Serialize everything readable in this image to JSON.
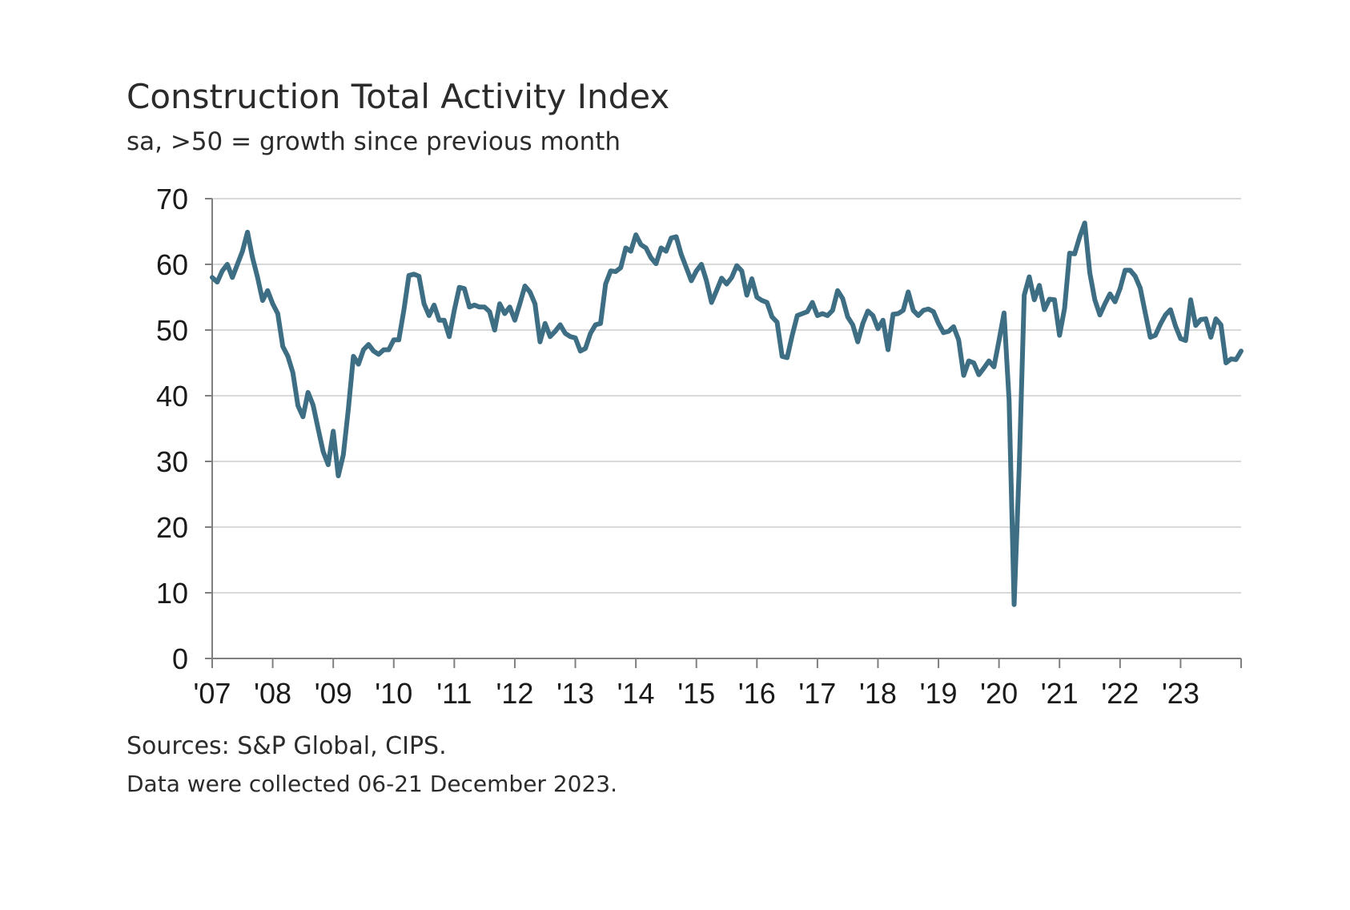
{
  "header": {
    "title": "Construction Total Activity Index",
    "subtitle": "sa, >50 = growth since previous month"
  },
  "footer": {
    "sources": "Sources: S&P Global, CIPS.",
    "collected": "Data were collected 06-21 December 2023."
  },
  "colors": {
    "line": "#3d6e84",
    "grid": "#d9d9d9",
    "axis": "#7f7f7f"
  },
  "chart_data": {
    "type": "line",
    "title": "Construction Total Activity Index",
    "subtitle": "sa, >50 = growth since previous month",
    "xlabel": "",
    "ylabel": "",
    "ylim": [
      0,
      70
    ],
    "yticks": [
      "0",
      "10",
      "20",
      "30",
      "40",
      "50",
      "60",
      "70"
    ],
    "xticks": [
      "'07",
      "'08",
      "'09",
      "'10",
      "'11",
      "'12",
      "'13",
      "'14",
      "'15",
      "'16",
      "'17",
      "'18",
      "'19",
      "'20",
      "'21",
      "'22",
      "'23"
    ],
    "grid": true,
    "legend": "none",
    "series": [
      {
        "start": "2007-01",
        "frequency": "monthly",
        "values": [
          58.0,
          57.3,
          59.0,
          60.0,
          58.0,
          60.0,
          62.0,
          64.9,
          61.0,
          58.0,
          54.5,
          56.0,
          54.0,
          52.5,
          47.5,
          46.0,
          43.5,
          38.5,
          36.8,
          40.5,
          38.6,
          35.0,
          31.5,
          29.5,
          34.6,
          27.8,
          31.0,
          38.0,
          46.0,
          44.8,
          47.0,
          47.8,
          46.8,
          46.3,
          47.0,
          47.0,
          48.5,
          48.5,
          53.0,
          58.3,
          58.5,
          58.2,
          54.0,
          52.2,
          53.8,
          51.5,
          51.5,
          49.0,
          53.0,
          56.5,
          56.3,
          53.5,
          53.8,
          53.5,
          53.5,
          52.8,
          50.0,
          54.0,
          52.5,
          53.5,
          51.5,
          54.0,
          56.7,
          55.8,
          54.0,
          48.2,
          51.0,
          49.0,
          49.8,
          50.8,
          49.5,
          49.0,
          48.8,
          46.8,
          47.2,
          49.5,
          50.8,
          51.0,
          57.0,
          59.0,
          58.9,
          59.5,
          62.5,
          62.0,
          64.5,
          63.0,
          62.5,
          61.0,
          60.1,
          62.5,
          62.0,
          64.0,
          64.2,
          61.5,
          59.5,
          57.5,
          59.0,
          60.0,
          57.5,
          54.2,
          56.0,
          57.9,
          57.0,
          58.0,
          59.8,
          59.0,
          55.3,
          57.8,
          55.0,
          54.5,
          54.2,
          52.0,
          51.2,
          46.0,
          45.8,
          49.2,
          52.2,
          52.5,
          52.8,
          54.2,
          52.2,
          52.5,
          52.2,
          53.0,
          56.0,
          54.8,
          52.0,
          50.8,
          48.2,
          51.0,
          52.9,
          52.2,
          50.2,
          51.5,
          47.0,
          52.4,
          52.5,
          53.0,
          55.8,
          53.0,
          52.2,
          53.0,
          53.2,
          52.8,
          51.0,
          49.6,
          49.8,
          50.5,
          48.5,
          43.1,
          45.3,
          45.0,
          43.2,
          44.2,
          45.3,
          44.4,
          48.4,
          52.6,
          39.3,
          8.2,
          28.9,
          55.3,
          58.1,
          54.6,
          56.8,
          53.1,
          54.7,
          54.6,
          49.2,
          53.3,
          61.7,
          61.6,
          64.2,
          66.3,
          58.7,
          54.6,
          52.3,
          54.0,
          55.5,
          54.3,
          56.3,
          59.1,
          59.1,
          58.2,
          56.4,
          52.6,
          48.9,
          49.2,
          50.9,
          52.3,
          53.1,
          50.6,
          48.7,
          48.4,
          54.6,
          50.7,
          51.6,
          51.7,
          48.9,
          51.7,
          50.8,
          45.0,
          45.6,
          45.5,
          46.8
        ]
      }
    ]
  }
}
